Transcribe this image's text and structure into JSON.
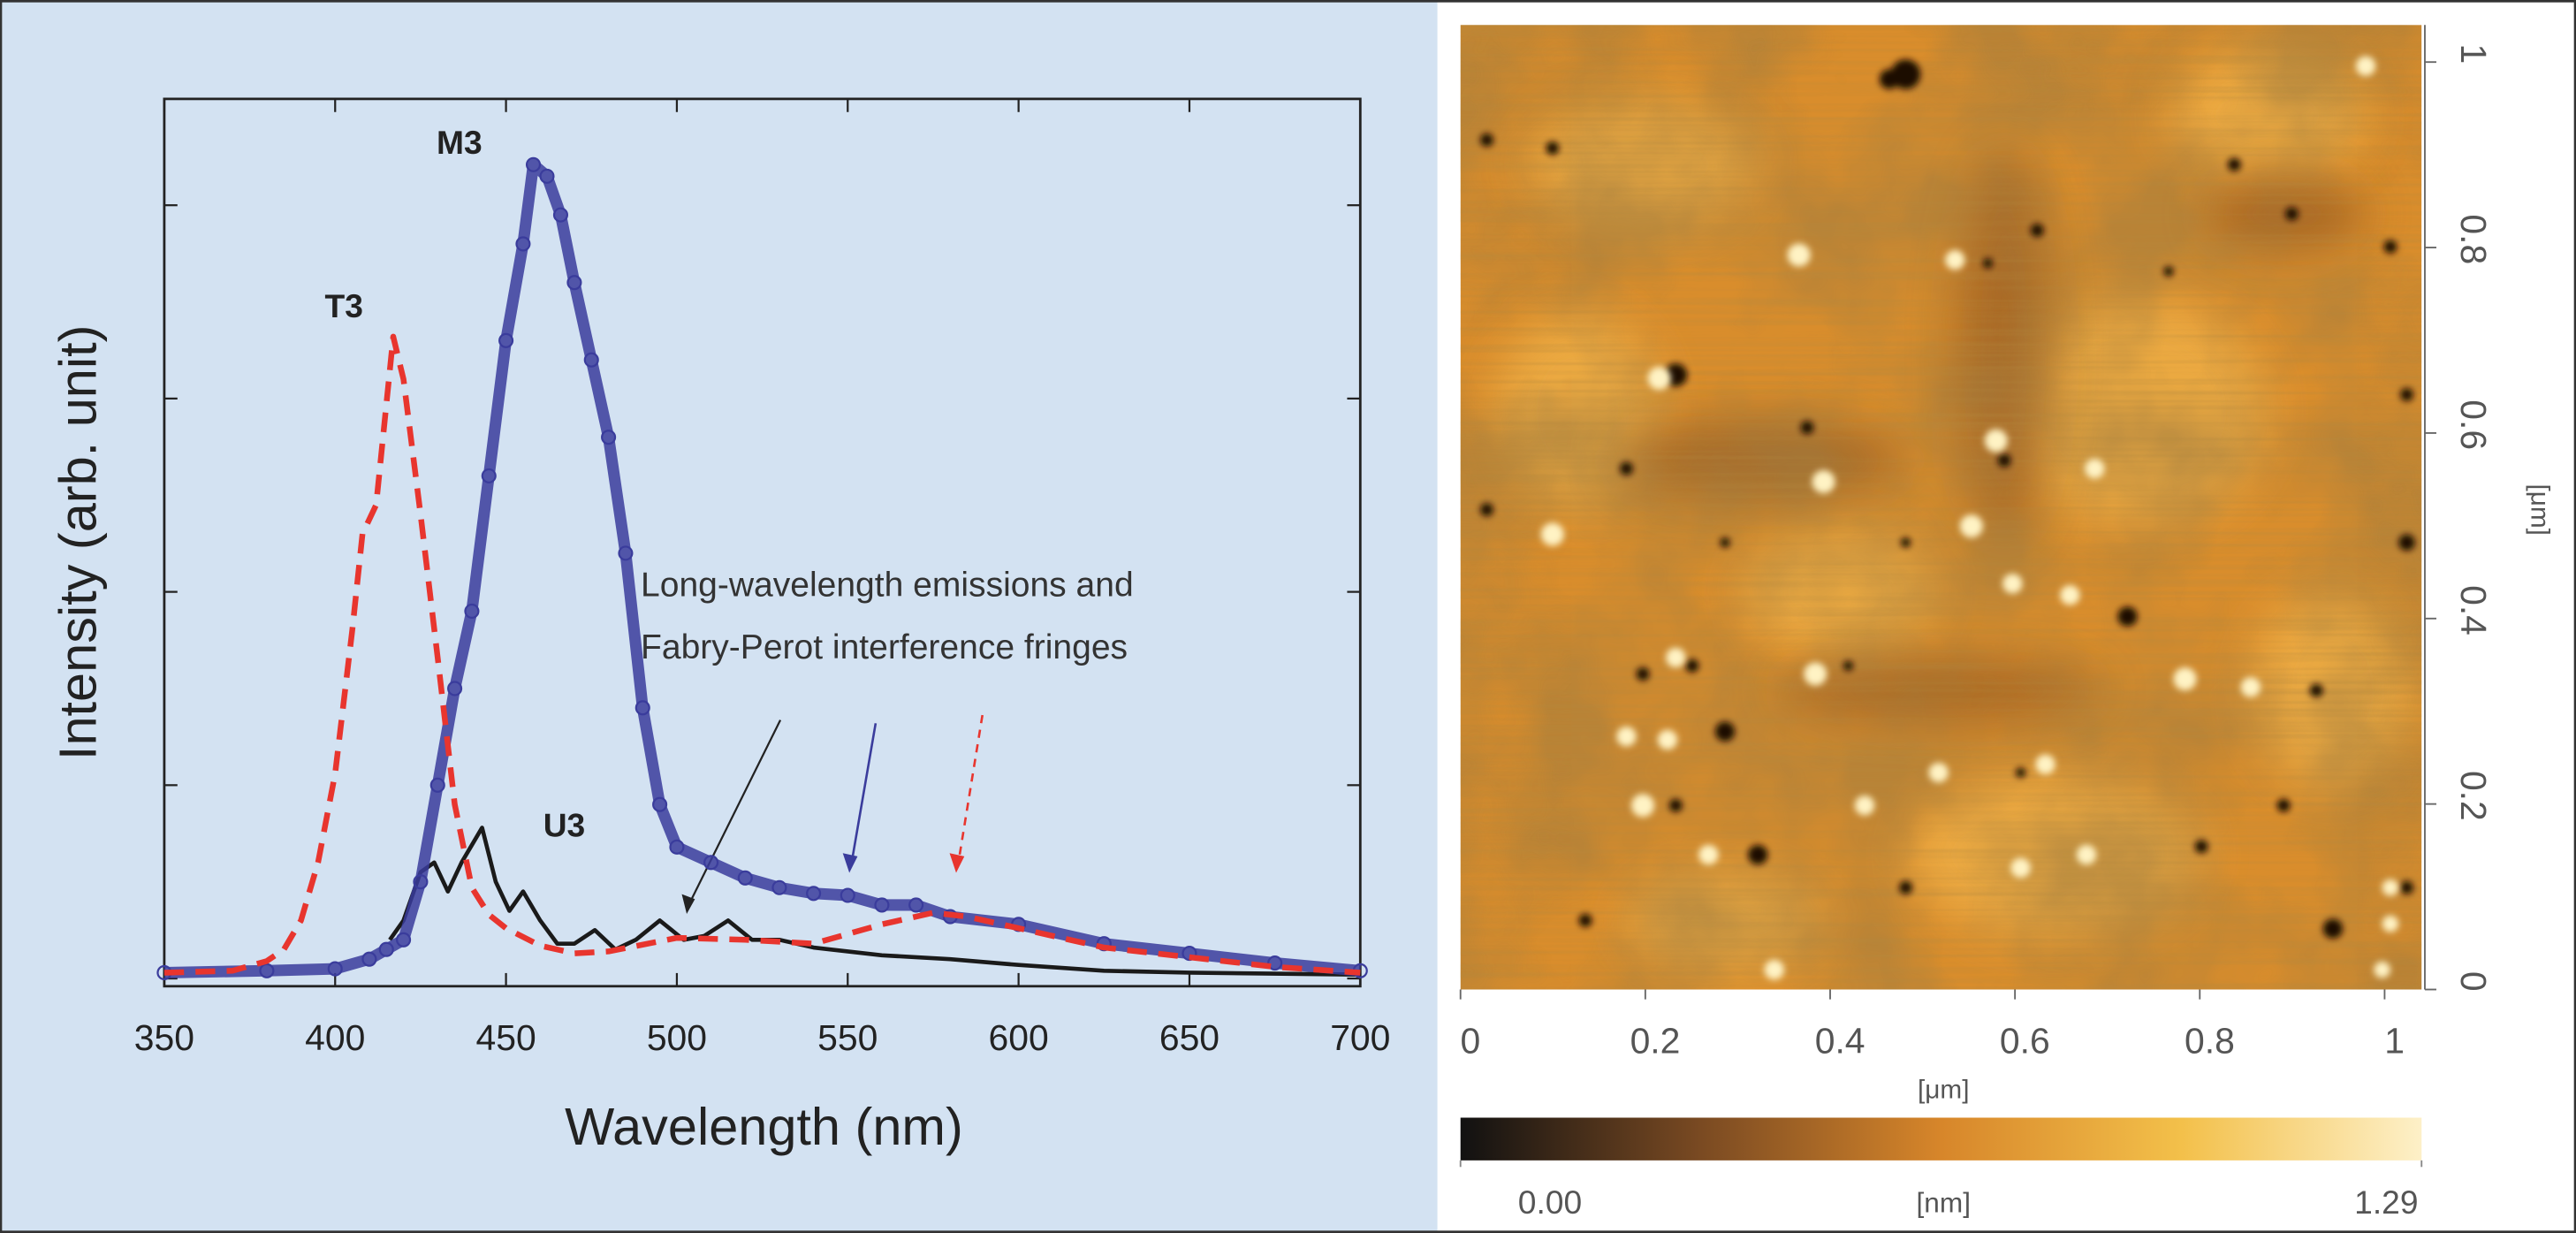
{
  "chart_data": [
    {
      "type": "line",
      "xlabel": "Wavelength (nm)",
      "ylabel": "Intensity (arb. unit)",
      "xlim": [
        350,
        700
      ],
      "xticks": [
        350,
        400,
        450,
        500,
        550,
        600,
        650,
        700
      ],
      "ylim": [
        -0.04,
        4.55
      ],
      "yticks": [
        0,
        1,
        2,
        3,
        4
      ],
      "annotation": [
        "Long-wavelength emissions and",
        "Fabry-Perot interference fringes"
      ],
      "series": [
        {
          "name": "M3",
          "color": "#3a3c9c",
          "style": "circles",
          "x": [
            350,
            380,
            400,
            410,
            415,
            420,
            425,
            430,
            435,
            440,
            445,
            450,
            455,
            458,
            462,
            466,
            470,
            475,
            480,
            485,
            490,
            495,
            500,
            510,
            520,
            530,
            540,
            550,
            560,
            570,
            580,
            600,
            625,
            650,
            675,
            700
          ],
          "values": [
            0.03,
            0.04,
            0.05,
            0.1,
            0.15,
            0.2,
            0.5,
            1.0,
            1.5,
            1.9,
            2.6,
            3.3,
            3.8,
            4.21,
            4.15,
            3.95,
            3.6,
            3.2,
            2.8,
            2.2,
            1.4,
            0.9,
            0.68,
            0.6,
            0.52,
            0.47,
            0.44,
            0.43,
            0.38,
            0.38,
            0.32,
            0.28,
            0.18,
            0.13,
            0.08,
            0.04
          ]
        },
        {
          "name": "T3",
          "color": "#e8352e",
          "style": "dashed",
          "x": [
            350,
            370,
            380,
            385,
            390,
            395,
            400,
            405,
            408,
            412,
            417,
            420,
            425,
            430,
            435,
            440,
            445,
            450,
            460,
            470,
            480,
            500,
            520,
            540,
            560,
            575,
            585,
            600,
            625,
            650,
            675,
            700
          ],
          "values": [
            0.03,
            0.04,
            0.09,
            0.15,
            0.3,
            0.6,
            1.06,
            1.8,
            2.3,
            2.45,
            3.32,
            3.1,
            2.4,
            1.66,
            0.9,
            0.47,
            0.33,
            0.26,
            0.17,
            0.13,
            0.14,
            0.21,
            0.2,
            0.18,
            0.28,
            0.34,
            0.32,
            0.26,
            0.16,
            0.11,
            0.06,
            0.03
          ]
        },
        {
          "name": "U3",
          "color": "#1a1a1a",
          "style": "solid",
          "x": [
            416,
            420,
            425,
            429,
            433,
            437,
            443,
            447,
            451,
            455,
            460,
            465,
            470,
            476,
            482,
            488,
            495,
            502,
            508,
            515,
            522,
            530,
            540,
            550,
            560,
            580,
            600,
            625,
            650,
            700
          ],
          "values": [
            0.2,
            0.3,
            0.55,
            0.6,
            0.45,
            0.6,
            0.78,
            0.5,
            0.35,
            0.45,
            0.3,
            0.18,
            0.18,
            0.25,
            0.15,
            0.2,
            0.3,
            0.2,
            0.22,
            0.3,
            0.2,
            0.2,
            0.16,
            0.14,
            0.12,
            0.1,
            0.07,
            0.04,
            0.03,
            0.02
          ]
        }
      ]
    },
    {
      "type": "image",
      "xlabel": "[μm]",
      "ylabel": "[μm]",
      "xlim": [
        0,
        1.04
      ],
      "xticks": [
        0,
        0.2,
        0.4,
        0.6,
        0.8,
        1
      ],
      "ylim": [
        0,
        1.04
      ],
      "yticks": [
        0,
        0.2,
        0.4,
        0.6,
        0.8,
        1
      ],
      "colorbar": {
        "label": "[nm]",
        "lim": [
          0,
          1.29
        ],
        "ticks": [
          {
            "value": 0,
            "label": "0.00"
          },
          1.29
        ],
        "colors": [
          "#111111",
          "#7a4a22",
          "#d7862a",
          "#f3c04a",
          "#fdf0c8"
        ]
      }
    }
  ]
}
